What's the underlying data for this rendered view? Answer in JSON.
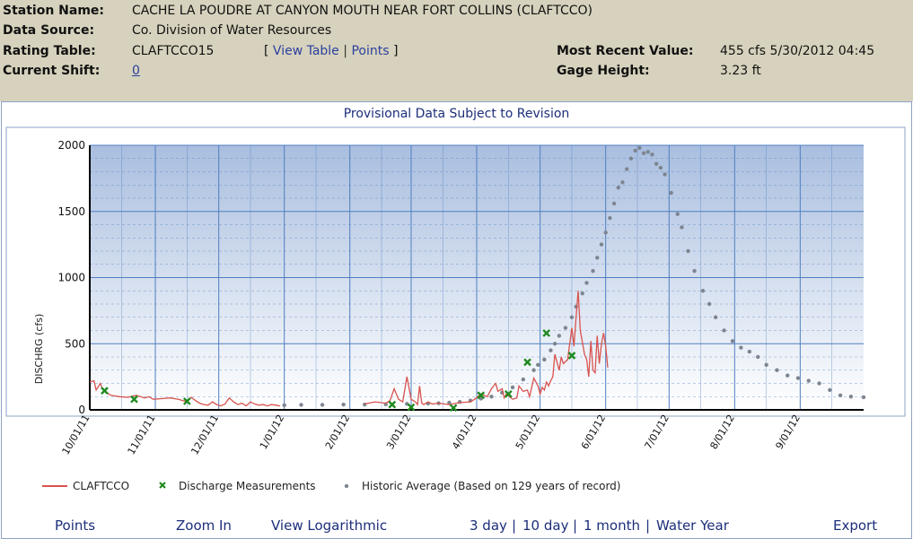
{
  "header": {
    "station_name_label": "Station Name:",
    "station_name": "CACHE LA POUDRE AT CANYON MOUTH NEAR FORT COLLINS (CLAFTCCO)",
    "data_source_label": "Data Source:",
    "data_source": "Co. Division of Water Resources",
    "rating_table_label": "Rating Table:",
    "rating_table": "CLAFTCCO15",
    "bracket_open": "[",
    "view_table_link": "View Table",
    "link_sep": "|",
    "points_link": "Points",
    "bracket_close": "]",
    "current_shift_label": "Current Shift:",
    "current_shift": "0",
    "most_recent_label": "Most Recent Value:",
    "most_recent_value": "455 cfs 5/30/2012 04:45",
    "gage_height_label": "Gage Height:",
    "gage_height": "3.23 ft"
  },
  "panel": {
    "provisional_notice": "Provisional Data Subject to Revision"
  },
  "footer": {
    "points": "Points",
    "zoom_in": "Zoom In",
    "view_log": "View Logarithmic",
    "three_day": "3 day",
    "ten_day": "10 day",
    "one_month": "1 month",
    "water_year": "Water Year",
    "sep": "|",
    "export": "Export"
  },
  "chart_data": {
    "type": "line",
    "ylabel": "DISCHRG (cfs)",
    "ylim": [
      0,
      2000
    ],
    "yticks": [
      0,
      500,
      1000,
      1500,
      2000
    ],
    "xticks": [
      "10/01/11",
      "11/01/11",
      "12/01/11",
      "1/01/12",
      "2/01/12",
      "3/01/12",
      "4/01/12",
      "5/01/12",
      "6/01/12",
      "7/01/12",
      "8/01/12",
      "9/01/12"
    ],
    "xlim_days": [
      0,
      366
    ],
    "grid": true,
    "legend_position": "bottom-left",
    "colors": {
      "claftcco": "#d9534f",
      "measurements": "#1f8a1f",
      "historic": "#7d8590",
      "plot_bg_top": "#a9bedf",
      "plot_bg_bottom": "#ffffff",
      "grid": "#4f7fc0"
    },
    "series": [
      {
        "name": "CLAFTCCO",
        "kind": "line",
        "x": [
          0,
          2,
          3,
          5,
          6,
          8,
          10,
          14,
          18,
          22,
          26,
          28,
          30,
          34,
          38,
          42,
          46,
          48,
          50,
          52,
          54,
          56,
          58,
          60,
          62,
          64,
          66,
          68,
          70,
          72,
          74,
          76,
          78,
          80,
          82,
          84,
          86,
          88,
          90,
          130,
          135,
          140,
          142,
          144,
          146,
          148,
          150,
          152,
          154,
          155,
          156,
          157,
          158,
          160,
          162,
          165,
          170,
          175,
          180,
          182,
          185,
          188,
          190,
          192,
          193,
          195,
          196,
          197,
          200,
          202,
          203,
          205,
          207,
          208,
          210,
          212,
          213,
          214,
          215,
          216,
          217,
          218,
          219,
          220,
          222,
          223,
          224,
          226,
          227,
          228,
          229,
          230,
          231,
          232,
          234,
          235,
          236,
          237,
          238,
          239,
          240,
          241,
          242,
          243,
          244,
          245
        ],
        "y": [
          210,
          220,
          150,
          200,
          160,
          130,
          110,
          100,
          95,
          110,
          90,
          100,
          80,
          85,
          90,
          80,
          60,
          95,
          70,
          50,
          40,
          35,
          60,
          40,
          30,
          45,
          90,
          60,
          40,
          50,
          30,
          60,
          45,
          35,
          40,
          30,
          40,
          35,
          30,
          45,
          60,
          50,
          70,
          160,
          80,
          60,
          250,
          80,
          60,
          40,
          180,
          50,
          40,
          60,
          45,
          50,
          40,
          55,
          60,
          80,
          120,
          100,
          160,
          200,
          140,
          160,
          90,
          120,
          80,
          90,
          180,
          140,
          150,
          100,
          240,
          180,
          120,
          170,
          150,
          210,
          180,
          220,
          250,
          420,
          300,
          400,
          350,
          380,
          500,
          620,
          480,
          700,
          900,
          600,
          420,
          380,
          250,
          520,
          300,
          280,
          560,
          350,
          500,
          580,
          480,
          320
        ]
      },
      {
        "name": "Discharge Measurements",
        "kind": "marker",
        "x": [
          7,
          21,
          46,
          143,
          152,
          172,
          185,
          198,
          207,
          216,
          228
        ],
        "y": [
          145,
          80,
          65,
          40,
          20,
          15,
          110,
          120,
          360,
          580,
          410
        ]
      },
      {
        "name": "Historic Average (Based on 129 years of record)",
        "kind": "dots",
        "x": [
          92,
          100,
          110,
          120,
          130,
          140,
          150,
          160,
          165,
          170,
          175,
          180,
          185,
          190,
          195,
          200,
          205,
          210,
          212,
          215,
          218,
          220,
          222,
          225,
          228,
          230,
          233,
          235,
          238,
          240,
          242,
          244,
          246,
          248,
          250,
          252,
          254,
          256,
          258,
          260,
          262,
          264,
          266,
          268,
          270,
          272,
          275,
          278,
          280,
          283,
          286,
          290,
          293,
          296,
          300,
          304,
          308,
          312,
          316,
          320,
          325,
          330,
          335,
          340,
          345,
          350,
          355,
          360,
          366
        ],
        "y": [
          35,
          38,
          38,
          40,
          40,
          42,
          45,
          48,
          50,
          55,
          60,
          70,
          85,
          100,
          130,
          170,
          230,
          300,
          340,
          380,
          450,
          500,
          560,
          620,
          700,
          780,
          880,
          960,
          1050,
          1150,
          1250,
          1340,
          1450,
          1560,
          1680,
          1720,
          1820,
          1900,
          1960,
          1980,
          1940,
          1950,
          1930,
          1860,
          1830,
          1780,
          1640,
          1480,
          1380,
          1200,
          1050,
          900,
          800,
          700,
          600,
          520,
          470,
          440,
          400,
          340,
          300,
          260,
          240,
          220,
          200,
          150,
          110,
          100,
          95
        ]
      }
    ]
  }
}
